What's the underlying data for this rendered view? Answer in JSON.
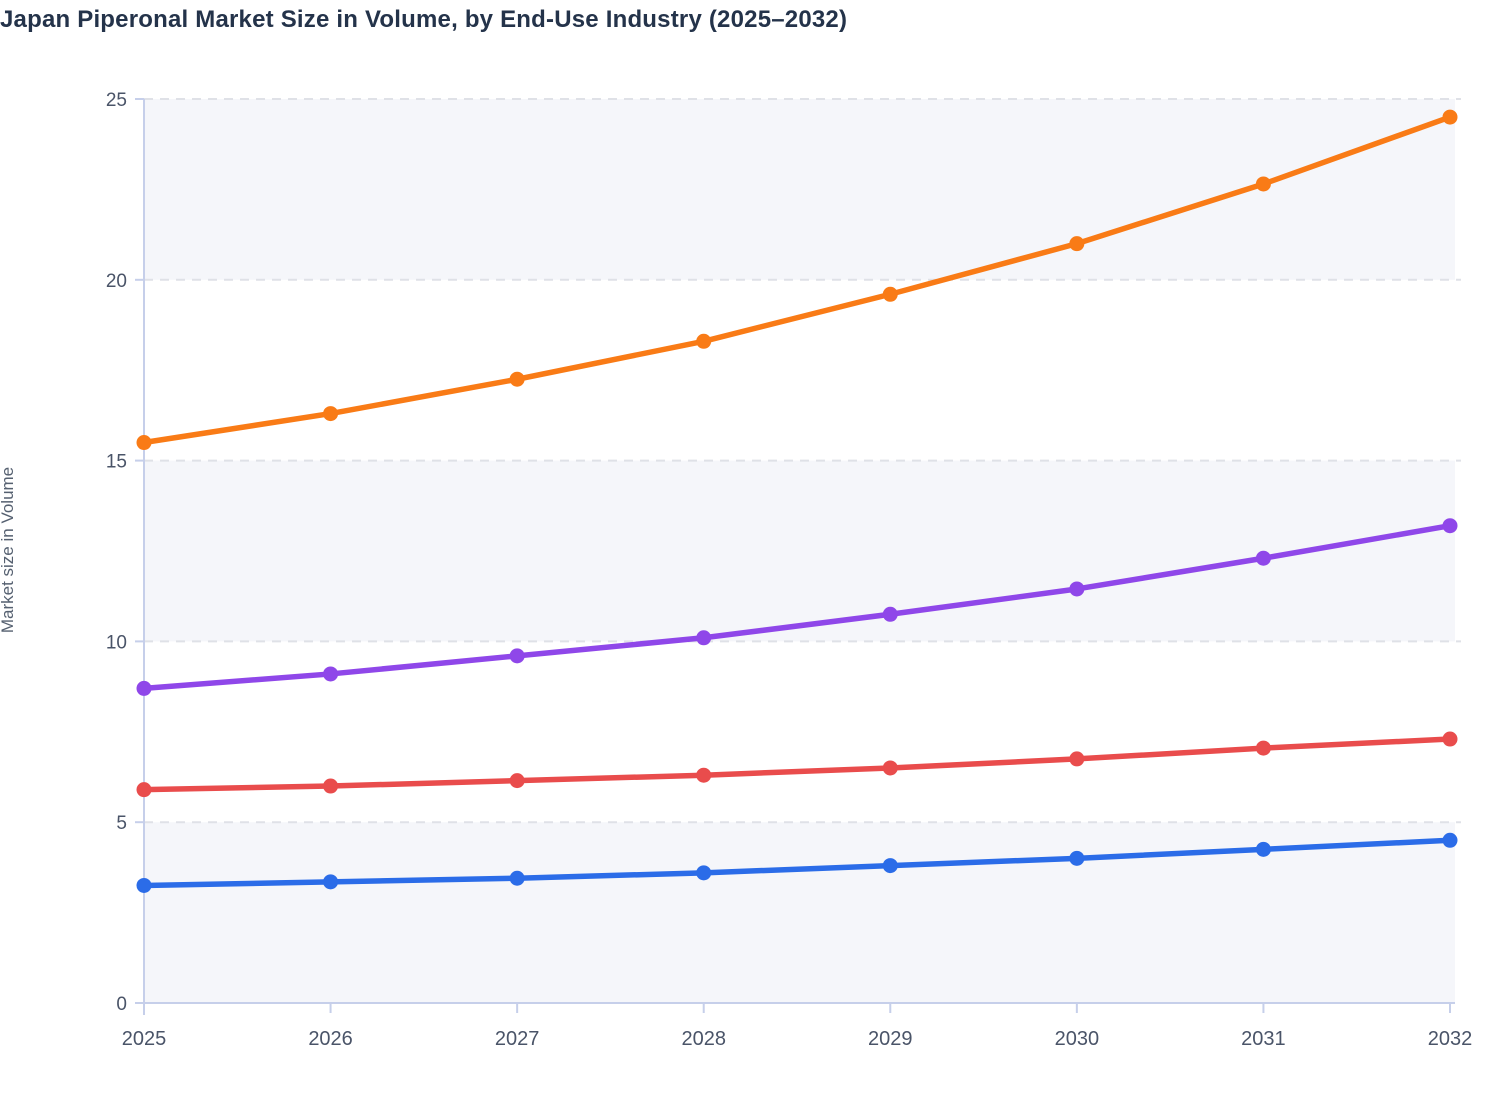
{
  "title": "Japan Piperonal Market Size in Volume, by End-Use Industry (2025–2032)",
  "y_axis_title": "Market size in Volume",
  "chart_data": {
    "type": "line",
    "x": [
      2025,
      2026,
      2027,
      2028,
      2029,
      2030,
      2031,
      2032
    ],
    "series": [
      {
        "name": "orange-series",
        "color": "#f97b16",
        "values": [
          15.5,
          16.3,
          17.25,
          18.3,
          19.6,
          21.0,
          22.65,
          24.5
        ]
      },
      {
        "name": "purple-series",
        "color": "#8f47e9",
        "values": [
          8.7,
          9.1,
          9.6,
          10.1,
          10.75,
          11.45,
          12.3,
          13.2
        ]
      },
      {
        "name": "red-series",
        "color": "#e94c4c",
        "values": [
          5.9,
          6.0,
          6.15,
          6.3,
          6.5,
          6.75,
          7.05,
          7.3
        ]
      },
      {
        "name": "blue-series",
        "color": "#2b6ce8",
        "values": [
          3.25,
          3.35,
          3.45,
          3.6,
          3.8,
          4.0,
          4.25,
          4.5
        ]
      }
    ],
    "title": "Japan Piperonal Market Size in Volume, by End-Use Industry (2025–2032)",
    "xlabel": "",
    "ylabel": "Market size in Volume",
    "ylim": [
      0,
      25
    ],
    "y_ticks": [
      0,
      5,
      10,
      15,
      20,
      25
    ],
    "x_tick_labels": [
      "2025",
      "2026",
      "2027",
      "2028",
      "2029",
      "2030",
      "2031",
      "2032"
    ],
    "grid": "horizontal dashed",
    "legend_position": "none",
    "shaded_bands": [
      [
        0,
        5
      ],
      [
        10,
        15
      ],
      [
        20,
        25
      ]
    ]
  },
  "colors": {
    "title_text": "#24334a",
    "axis_line": "#c6cfea",
    "grid_line": "#dfe1e7",
    "band_fill": "#f5f6fa",
    "tick_label": "#4a5468",
    "y_axis_title_text": "#556070"
  }
}
